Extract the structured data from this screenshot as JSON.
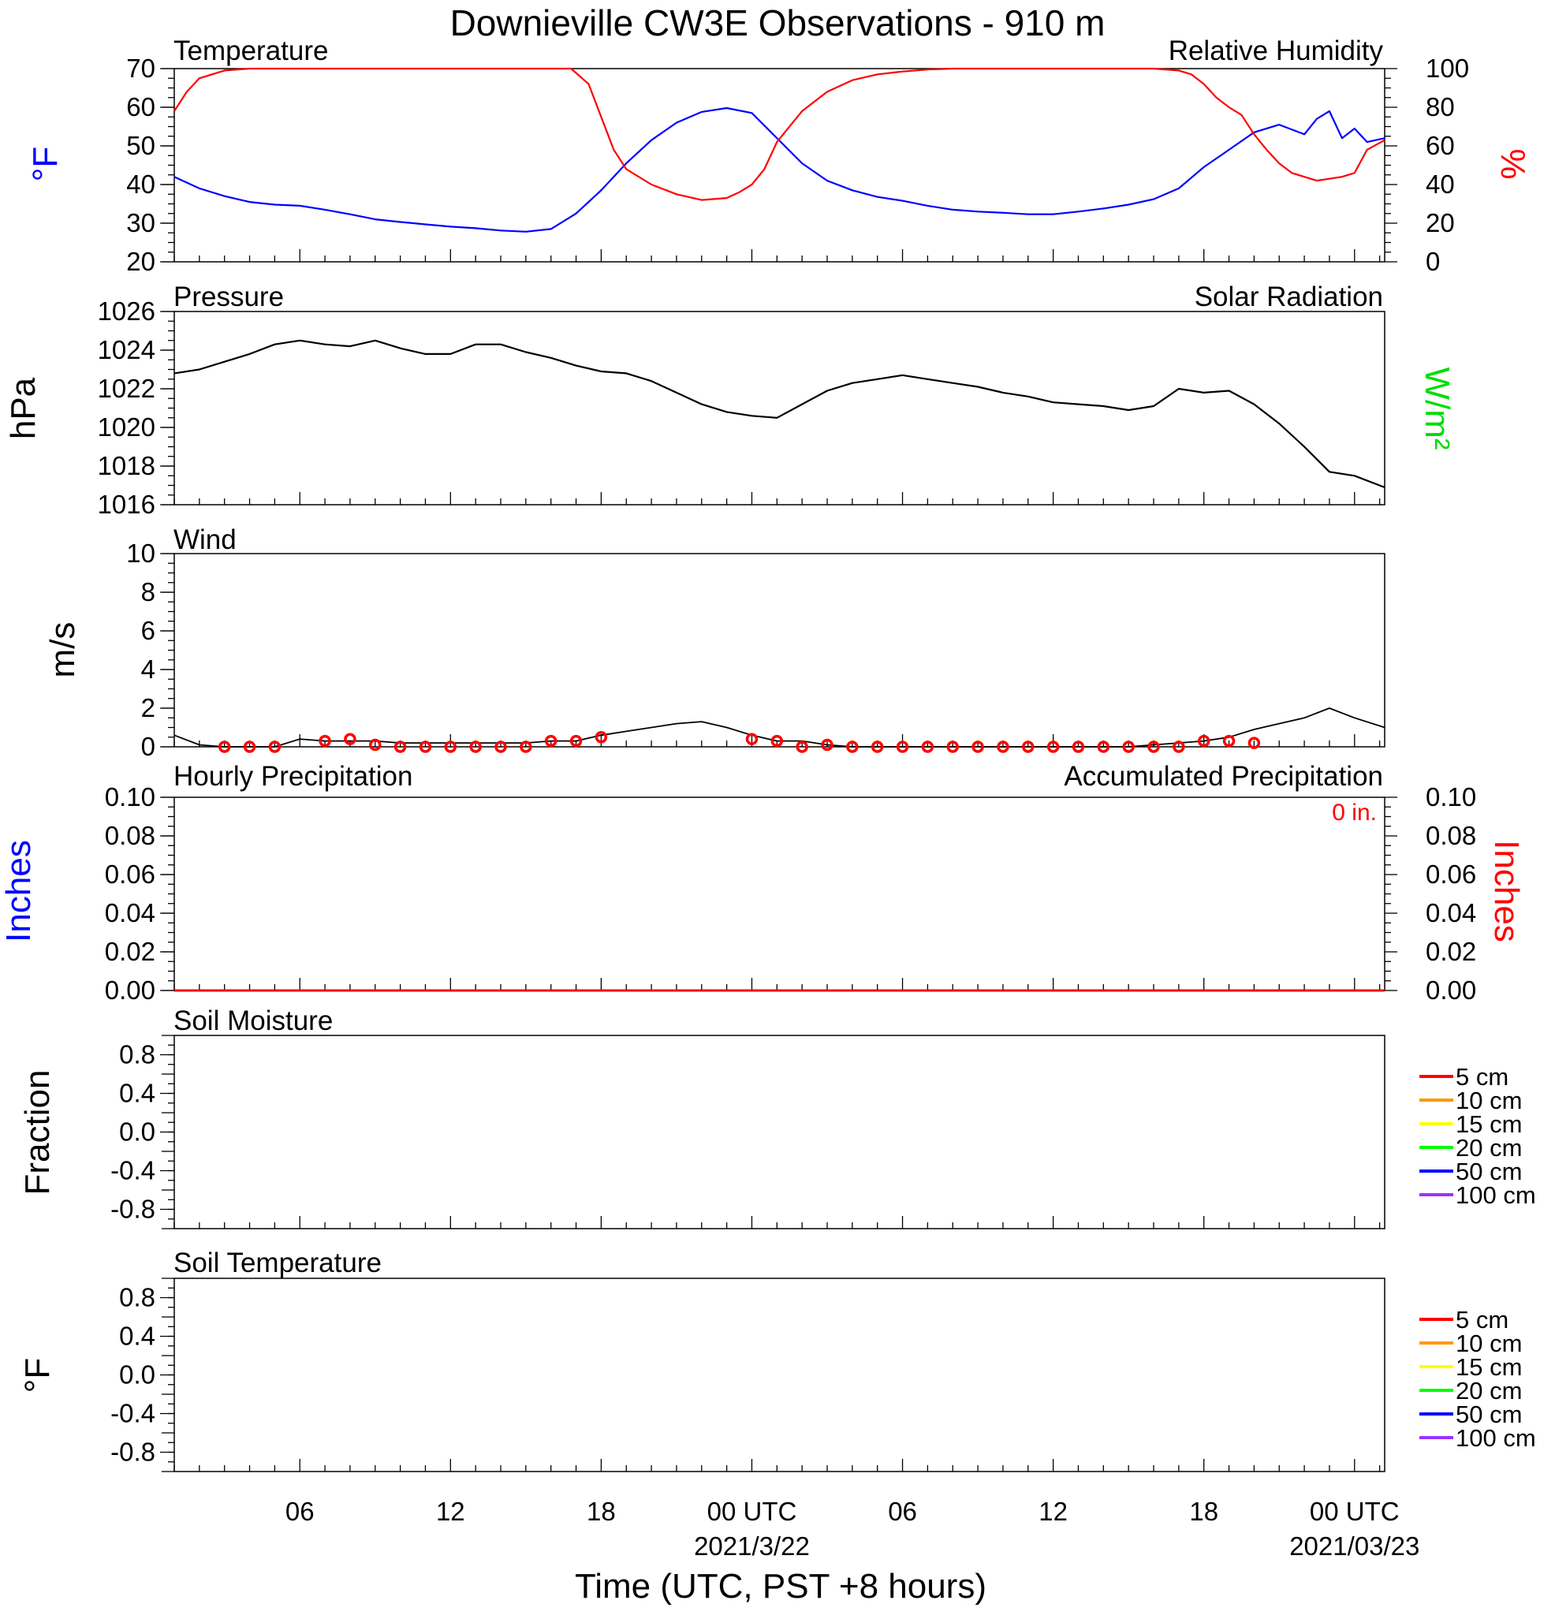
{
  "chart_data": {
    "type": "line",
    "title": "Downieville CW3E Observations - 910 m",
    "xlabel": "Time (UTC, PST +8 hours)",
    "x_ticks": [
      {
        "hour": 6,
        "label": "06",
        "date": ""
      },
      {
        "hour": 12,
        "label": "12",
        "date": ""
      },
      {
        "hour": 18,
        "label": "18",
        "date": ""
      },
      {
        "hour": 24,
        "label": "00 UTC",
        "date": "2021/3/22"
      },
      {
        "hour": 30,
        "label": "06",
        "date": ""
      },
      {
        "hour": 36,
        "label": "12",
        "date": ""
      },
      {
        "hour": 42,
        "label": "18",
        "date": ""
      },
      {
        "hour": 48,
        "label": "00 UTC",
        "date": "2021/03/23"
      }
    ],
    "x_range_hours": [
      1,
      49.2
    ],
    "panels": {
      "temperature_humidity": {
        "left_title": "Temperature",
        "right_title": "Relative Humidity",
        "left_unit": "°F",
        "right_unit": "%",
        "left_ylim": [
          20,
          70
        ],
        "right_ylim": [
          0,
          100
        ],
        "left_ticks": [
          "20",
          "30",
          "40",
          "50",
          "60",
          "70"
        ],
        "right_ticks": [
          "0",
          "20",
          "40",
          "60",
          "80",
          "100"
        ],
        "series": [
          {
            "name": "Temperature",
            "color": "#0000ff",
            "axis": "left",
            "x": [
              1,
              2,
              3,
              4,
              5,
              6,
              7,
              8,
              9,
              10,
              11,
              12,
              13,
              14,
              15,
              16,
              17,
              18,
              19,
              20,
              21,
              22,
              23,
              24,
              25,
              26,
              27,
              28,
              29,
              30,
              31,
              32,
              33,
              34,
              35,
              36,
              37,
              38,
              39,
              40,
              41,
              42,
              43,
              44,
              45,
              46,
              46.5,
              47,
              47.5,
              48,
              48.5,
              49.2
            ],
            "y": [
              42,
              39,
              37,
              35.5,
              34.8,
              34.5,
              33.5,
              32.3,
              31.0,
              30.3,
              29.7,
              29.1,
              28.7,
              28.1,
              27.8,
              28.5,
              32.5,
              38.5,
              45.5,
              51.5,
              56.0,
              58.8,
              59.8,
              58.5,
              52.0,
              45.5,
              41.0,
              38.5,
              36.8,
              35.8,
              34.5,
              33.5,
              33.0,
              32.7,
              32.3,
              32.3,
              33.0,
              33.8,
              34.8,
              36.2,
              39.0,
              44.5,
              49.0,
              53.5,
              55.5,
              53.0,
              57.0,
              59.0,
              52.0,
              54.5,
              51.0,
              52.0
            ]
          },
          {
            "name": "Relative Humidity",
            "color": "#ff0000",
            "axis": "right",
            "x": [
              1,
              1.5,
              2,
              3,
              4,
              5,
              6,
              8,
              10,
              12,
              14,
              16,
              16.8,
              17.5,
              18,
              18.5,
              19,
              20,
              21,
              22,
              23,
              23.5,
              24,
              24.5,
              25,
              26,
              27,
              28,
              29,
              30,
              31,
              32,
              34,
              36,
              38,
              40,
              41,
              41.5,
              42,
              42.5,
              43,
              43.5,
              44,
              44.5,
              45,
              45.5,
              46,
              46.5,
              47,
              47.5,
              48,
              48.5,
              49.2
            ],
            "y": [
              78,
              88,
              95,
              99,
              100,
              100,
              100,
              100,
              100,
              100,
              100,
              100,
              100,
              92,
              75,
              58,
              48,
              40,
              35,
              32,
              33,
              36,
              40,
              48,
              62,
              78,
              88,
              94,
              97,
              98.5,
              99.5,
              100,
              100,
              100,
              100,
              100,
              99,
              97,
              92,
              85,
              80,
              76,
              66,
              58,
              51,
              46,
              44,
              42,
              43,
              44,
              46,
              58,
              63
            ]
          }
        ]
      },
      "pressure": {
        "left_title": "Pressure",
        "right_title": "Solar Radiation",
        "left_unit": "hPa",
        "right_unit": "W/m²",
        "ylim": [
          1016,
          1026
        ],
        "ticks": [
          "1016",
          "1018",
          "1020",
          "1022",
          "1024",
          "1026"
        ],
        "series": [
          {
            "name": "Pressure",
            "color": "#000000",
            "x": [
              1,
              2,
              3,
              4,
              5,
              6,
              7,
              8,
              9,
              10,
              11,
              12,
              13,
              14,
              15,
              16,
              17,
              18,
              19,
              20,
              21,
              22,
              23,
              24,
              25,
              26,
              27,
              28,
              29,
              30,
              31,
              32,
              33,
              34,
              35,
              36,
              37,
              38,
              39,
              40,
              41,
              42,
              43,
              44,
              45,
              46,
              47,
              48,
              49.2
            ],
            "y": [
              1022.8,
              1023.0,
              1023.4,
              1023.8,
              1024.3,
              1024.5,
              1024.3,
              1024.2,
              1024.5,
              1024.1,
              1023.8,
              1023.8,
              1024.3,
              1024.3,
              1023.9,
              1023.6,
              1023.2,
              1022.9,
              1022.8,
              1022.4,
              1021.8,
              1021.2,
              1020.8,
              1020.6,
              1020.5,
              1021.2,
              1021.9,
              1022.3,
              1022.5,
              1022.7,
              1022.5,
              1022.3,
              1022.1,
              1021.8,
              1021.6,
              1021.3,
              1021.2,
              1021.1,
              1020.9,
              1021.1,
              1022.0,
              1021.8,
              1021.9,
              1021.2,
              1020.2,
              1019.0,
              1017.7,
              1017.5,
              1016.9
            ]
          }
        ]
      },
      "wind": {
        "title": "Wind",
        "unit": "m/s",
        "ylim": [
          0,
          10
        ],
        "ticks": [
          "0",
          "2",
          "4",
          "6",
          "8",
          "10"
        ],
        "series": [
          {
            "name": "Wind",
            "color": "#000000",
            "x": [
              1,
              2,
              3,
              4,
              5,
              6,
              7,
              8,
              9,
              10,
              11,
              12,
              13,
              14,
              15,
              16,
              17,
              18,
              19,
              20,
              21,
              22,
              23,
              24,
              25,
              26,
              27,
              28,
              29,
              30,
              31,
              32,
              33,
              34,
              35,
              36,
              37,
              38,
              39,
              40,
              41,
              42,
              43,
              44,
              45,
              46,
              47,
              48,
              49.2
            ],
            "y": [
              0.6,
              0.1,
              0,
              0,
              0,
              0.4,
              0.3,
              0.3,
              0.3,
              0.2,
              0.2,
              0.2,
              0.2,
              0.2,
              0.2,
              0.3,
              0.3,
              0.6,
              0.8,
              1.0,
              1.2,
              1.3,
              1.0,
              0.6,
              0.3,
              0.3,
              0.1,
              0,
              0,
              0,
              0,
              0,
              0,
              0,
              0,
              0,
              0,
              0,
              0,
              0.1,
              0.2,
              0.3,
              0.5,
              0.9,
              1.2,
              1.5,
              2.0,
              1.5,
              1.0
            ]
          }
        ],
        "markers": {
          "color": "#ff0000",
          "x": [
            3,
            4,
            5,
            7,
            8,
            9,
            10,
            11,
            12,
            13,
            14,
            15,
            16,
            17,
            18,
            24,
            25,
            26,
            27,
            28,
            29,
            30,
            31,
            32,
            33,
            34,
            35,
            36,
            37,
            38,
            39,
            40,
            41,
            42,
            43,
            44
          ],
          "y": [
            0,
            0,
            0,
            0.3,
            0.4,
            0.1,
            0,
            0,
            0,
            0,
            0,
            0,
            0.3,
            0.3,
            0.5,
            0.4,
            0.3,
            0,
            0.1,
            0,
            0,
            0,
            0,
            0,
            0,
            0,
            0,
            0,
            0,
            0,
            0,
            0,
            0,
            0.3,
            0.3,
            0.2
          ]
        }
      },
      "precipitation": {
        "left_title": "Hourly Precipitation",
        "right_title": "Accumulated Precipitation",
        "total_label": "0 in.",
        "left_unit": "Inches",
        "right_unit": "Inches",
        "ylim": [
          0,
          0.1
        ],
        "ticks": [
          "0.00",
          "0.02",
          "0.04",
          "0.06",
          "0.08",
          "0.10"
        ],
        "series": [
          {
            "name": "Accumulated Precipitation",
            "color": "#ff0000",
            "x": [
              1,
              49.2
            ],
            "y": [
              0,
              0
            ]
          }
        ]
      },
      "soil_moisture": {
        "title": "Soil Moisture",
        "unit": "Fraction",
        "ylim": [
          -1,
          1
        ],
        "ticks": [
          "-0.8",
          "-0.4",
          "0.0",
          "0.4",
          "0.8"
        ],
        "legend": [
          {
            "label": "5 cm",
            "color": "#ff0000"
          },
          {
            "label": "10 cm",
            "color": "#ff9900"
          },
          {
            "label": "15 cm",
            "color": "#ffff00"
          },
          {
            "label": "20 cm",
            "color": "#00ff00"
          },
          {
            "label": "50 cm",
            "color": "#0000ff"
          },
          {
            "label": "100 cm",
            "color": "#9933ff"
          }
        ]
      },
      "soil_temperature": {
        "title": "Soil Temperature",
        "unit": "°F",
        "ylim": [
          -1,
          1
        ],
        "ticks": [
          "-0.8",
          "-0.4",
          "0.0",
          "0.4",
          "0.8"
        ],
        "legend": [
          {
            "label": "5 cm",
            "color": "#ff0000"
          },
          {
            "label": "10 cm",
            "color": "#ff9900"
          },
          {
            "label": "15 cm",
            "color": "#ffff00"
          },
          {
            "label": "20 cm",
            "color": "#00ff00"
          },
          {
            "label": "50 cm",
            "color": "#0000ff"
          },
          {
            "label": "100 cm",
            "color": "#9933ff"
          }
        ]
      }
    }
  }
}
